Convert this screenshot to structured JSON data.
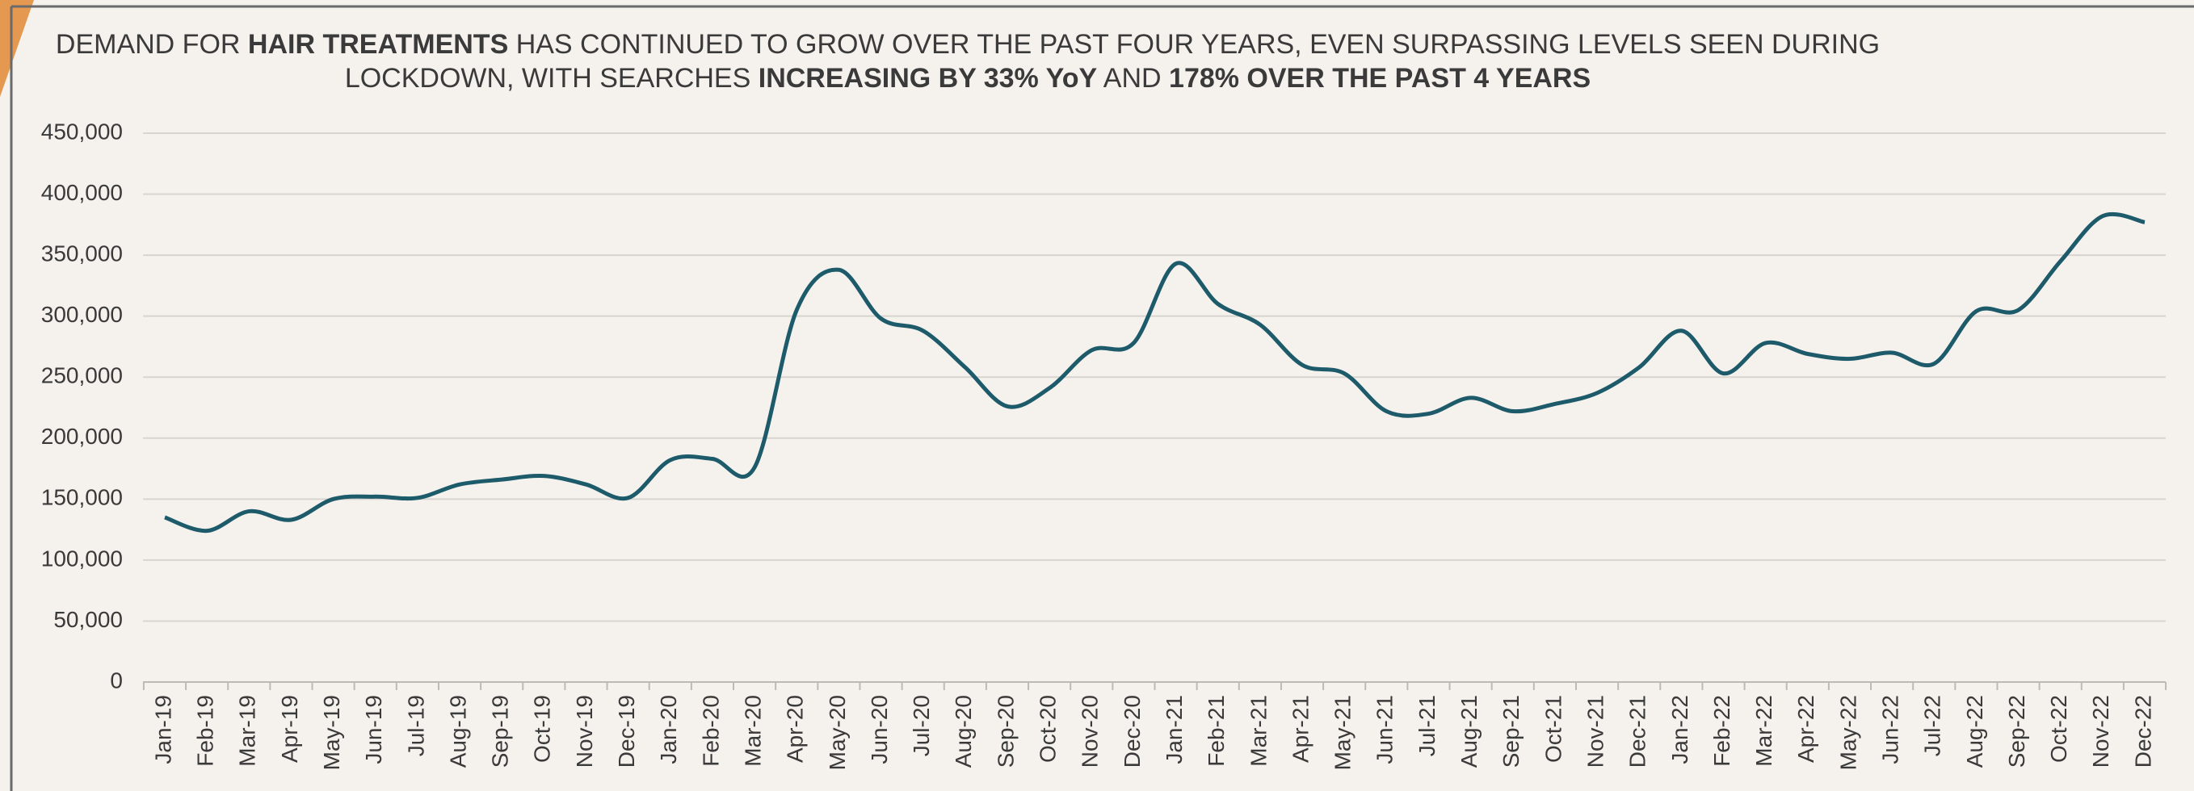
{
  "chart_data": {
    "type": "line",
    "title": [
      [
        {
          "text": "DEMAND FOR ",
          "bold": false
        },
        {
          "text": "HAIR TREATMENTS",
          "bold": true
        },
        {
          "text": " HAS CONTINUED TO GROW OVER THE PAST FOUR YEARS, EVEN SURPASSING LEVELS SEEN DURING",
          "bold": false
        }
      ],
      [
        {
          "text": "LOCKDOWN, WITH SEARCHES ",
          "bold": false
        },
        {
          "text": "INCREASING BY 33% YoY",
          "bold": true
        },
        {
          "text": " AND ",
          "bold": false
        },
        {
          "text": "178% OVER THE PAST 4 YEARS",
          "bold": true
        }
      ]
    ],
    "categories": [
      "Jan-19",
      "Feb-19",
      "Mar-19",
      "Apr-19",
      "May-19",
      "Jun-19",
      "Jul-19",
      "Aug-19",
      "Sep-19",
      "Oct-19",
      "Nov-19",
      "Dec-19",
      "Jan-20",
      "Feb-20",
      "Mar-20",
      "Apr-20",
      "May-20",
      "Jun-20",
      "Jul-20",
      "Aug-20",
      "Sep-20",
      "Oct-20",
      "Nov-20",
      "Dec-20",
      "Jan-21",
      "Feb-21",
      "Mar-21",
      "Apr-21",
      "May-21",
      "Jun-21",
      "Jul-21",
      "Aug-21",
      "Sep-21",
      "Oct-21",
      "Nov-21",
      "Dec-21",
      "Jan-22",
      "Feb-22",
      "Mar-22",
      "Apr-22",
      "May-22",
      "Jun-22",
      "Jul-22",
      "Aug-22",
      "Sep-22",
      "Oct-22",
      "Nov-22",
      "Dec-22"
    ],
    "values": [
      135000,
      124000,
      140000,
      133000,
      150000,
      152000,
      151000,
      162000,
      166000,
      169000,
      162000,
      151000,
      182000,
      183000,
      176000,
      305000,
      338000,
      298000,
      288000,
      258000,
      226000,
      241000,
      272000,
      278000,
      343000,
      310000,
      293000,
      260000,
      253000,
      222000,
      220000,
      233000,
      222000,
      228000,
      237000,
      258000,
      288000,
      253000,
      278000,
      269000,
      265000,
      270000,
      261000,
      304000,
      305000,
      345000,
      382000,
      377000
    ],
    "color": "#1d5a6a",
    "ylim": [
      0,
      450000
    ],
    "yticks": [
      0,
      {
        "value": 50000,
        "label": "50,000"
      },
      {
        "value": 100000,
        "label": "100,000"
      },
      {
        "value": 150000,
        "label": "150,000"
      },
      {
        "value": 200000,
        "label": "200,000"
      },
      {
        "value": 250000,
        "label": "250,000"
      },
      {
        "value": 300000,
        "label": "300,000"
      },
      {
        "value": 350000,
        "label": "350,000"
      },
      {
        "value": 400000,
        "label": "400,000"
      },
      {
        "value": 450000,
        "label": "450,000"
      }
    ],
    "grid": true
  }
}
